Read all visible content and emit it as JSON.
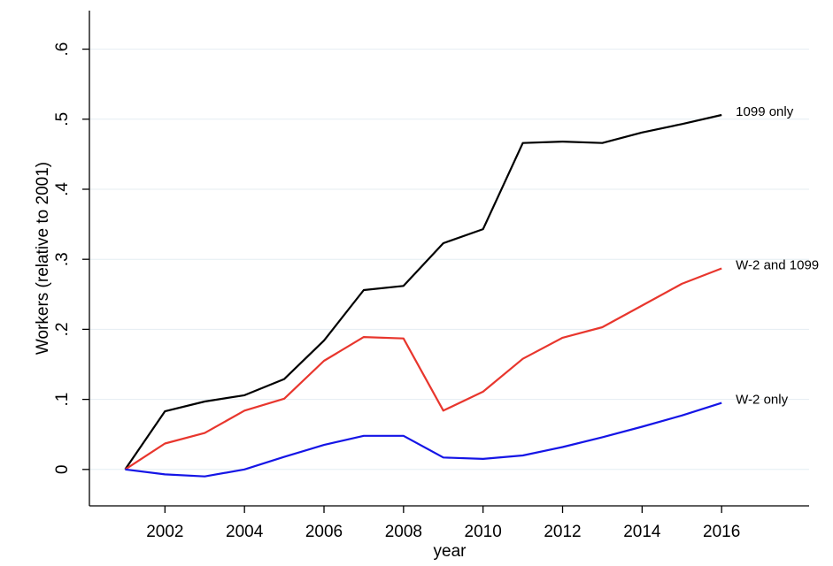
{
  "chart_data": {
    "type": "line",
    "xlabel": "year",
    "ylabel": "Workers (relative to 2001)",
    "xlim": [
      2000.1,
      2018.2
    ],
    "ylim": [
      -0.052,
      0.655
    ],
    "x_ticks": [
      2002,
      2004,
      2006,
      2008,
      2010,
      2012,
      2014,
      2016
    ],
    "x_tick_labels": [
      "2002",
      "2004",
      "2006",
      "2008",
      "2010",
      "2012",
      "2014",
      "2016"
    ],
    "y_ticks": [
      0,
      0.1,
      0.2,
      0.3,
      0.4,
      0.5,
      0.6
    ],
    "y_tick_labels": [
      "0",
      ".1",
      ".2",
      ".3",
      ".4",
      ".5",
      ".6"
    ],
    "grid": true,
    "legend": "direct labels at line ends",
    "x": [
      2001,
      2002,
      2003,
      2004,
      2005,
      2006,
      2007,
      2008,
      2009,
      2010,
      2011,
      2012,
      2013,
      2014,
      2015,
      2016
    ],
    "series": [
      {
        "name": "1099 only",
        "color": "#000000",
        "values": [
          0,
          0.083,
          0.097,
          0.106,
          0.129,
          0.184,
          0.256,
          0.262,
          0.323,
          0.343,
          0.466,
          0.468,
          0.466,
          0.481,
          0.493,
          0.506
        ]
      },
      {
        "name": "W-2 and 1099",
        "color": "#e8362d",
        "values": [
          0,
          0.037,
          0.052,
          0.084,
          0.101,
          0.155,
          0.189,
          0.187,
          0.084,
          0.111,
          0.158,
          0.188,
          0.203,
          0.234,
          0.265,
          0.287
        ]
      },
      {
        "name": "W-2 only",
        "color": "#1515e6",
        "values": [
          0,
          -0.007,
          -0.01,
          0,
          0.018,
          0.035,
          0.048,
          0.048,
          0.017,
          0.015,
          0.02,
          0.032,
          0.046,
          0.061,
          0.077,
          0.095
        ]
      }
    ]
  }
}
